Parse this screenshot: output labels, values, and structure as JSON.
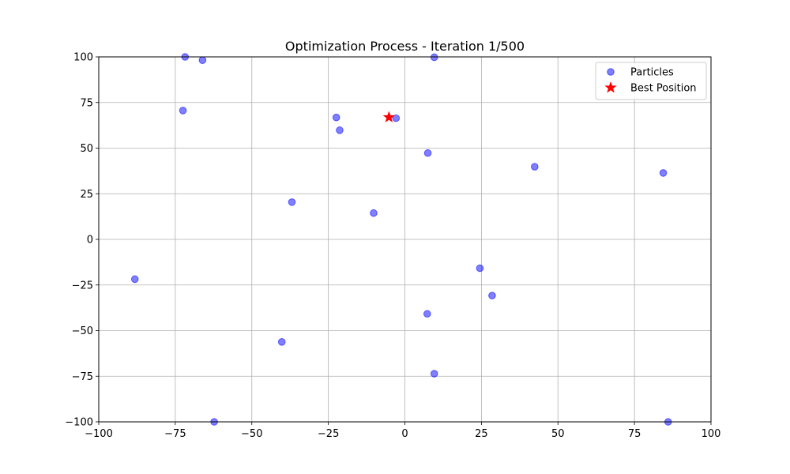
{
  "chart_data": {
    "type": "scatter",
    "title": "Optimization Process - Iteration 1/500",
    "xlabel": "",
    "ylabel": "",
    "xlim": [
      -100,
      100
    ],
    "ylim": [
      -100,
      100
    ],
    "xticks": [
      -100,
      -75,
      -50,
      -25,
      0,
      25,
      50,
      75,
      100
    ],
    "yticks": [
      -100,
      -75,
      -50,
      -25,
      0,
      25,
      50,
      75,
      100
    ],
    "xtick_labels": [
      "−100",
      "−75",
      "−50",
      "−25",
      "0",
      "25",
      "50",
      "75",
      "100"
    ],
    "ytick_labels": [
      "−100",
      "−75",
      "−50",
      "−25",
      "0",
      "25",
      "50",
      "75",
      "100"
    ],
    "grid": true,
    "legend_position": "top-right",
    "series": [
      {
        "name": "Particles",
        "color": "#0000ff",
        "marker": "circle",
        "alpha": 0.5,
        "points": [
          {
            "x": -71.8,
            "y": 100
          },
          {
            "x": -66.1,
            "y": 98.2
          },
          {
            "x": 9.6,
            "y": 99.8
          },
          {
            "x": -72.5,
            "y": 70.6
          },
          {
            "x": -22.4,
            "y": 66.8
          },
          {
            "x": -21.3,
            "y": 59.8
          },
          {
            "x": -2.9,
            "y": 66.4
          },
          {
            "x": 7.5,
            "y": 47.3
          },
          {
            "x": 42.4,
            "y": 39.8
          },
          {
            "x": 84.4,
            "y": 36.4
          },
          {
            "x": -36.9,
            "y": 20.4
          },
          {
            "x": -10.2,
            "y": 14.4
          },
          {
            "x": -88.2,
            "y": -21.8
          },
          {
            "x": 24.5,
            "y": -15.8
          },
          {
            "x": 28.5,
            "y": -30.8
          },
          {
            "x": 7.3,
            "y": -40.8
          },
          {
            "x": -40.2,
            "y": -56.2
          },
          {
            "x": 9.6,
            "y": -73.6
          },
          {
            "x": -62.3,
            "y": -100
          },
          {
            "x": 86.0,
            "y": -100
          }
        ]
      },
      {
        "name": "Best Position",
        "color": "#ff0000",
        "marker": "star",
        "points": [
          {
            "x": -5.2,
            "y": 66.9
          }
        ]
      }
    ]
  }
}
